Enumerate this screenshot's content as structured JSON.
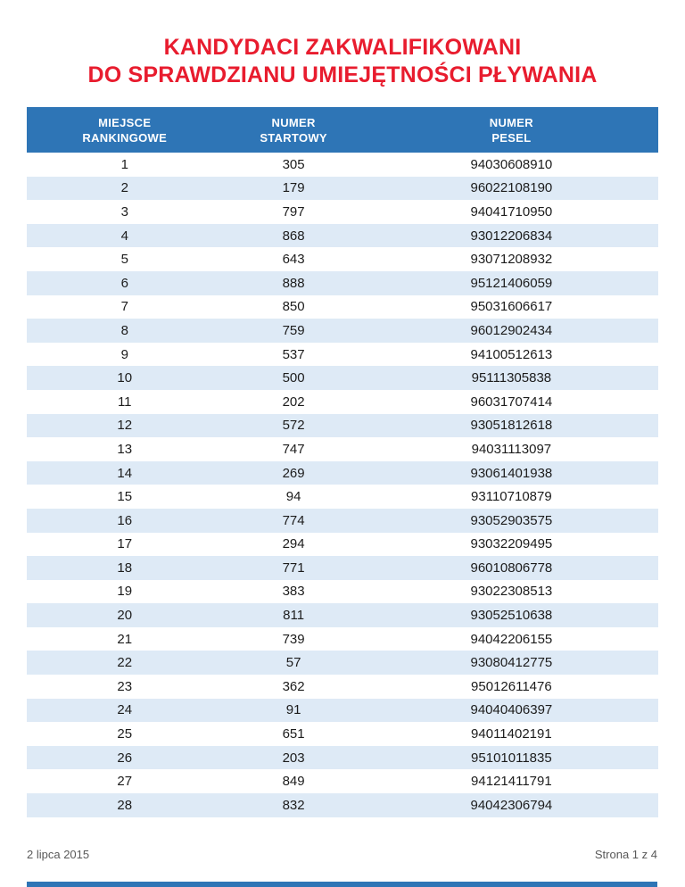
{
  "title": {
    "line1": "KANDYDACI ZAKWALIFIKOWANI",
    "line2": "DO SPRAWDZIANU UMIEJĘTNOŚCI PŁYWANIA"
  },
  "table": {
    "columns": [
      {
        "line1": "MIEJSCE",
        "line2": "RANKINGOWE"
      },
      {
        "line1": "NUMER",
        "line2": "STARTOWY"
      },
      {
        "line1": "NUMER",
        "line2": "PESEL"
      }
    ],
    "rows": [
      [
        "1",
        "305",
        "94030608910"
      ],
      [
        "2",
        "179",
        "96022108190"
      ],
      [
        "3",
        "797",
        "94041710950"
      ],
      [
        "4",
        "868",
        "93012206834"
      ],
      [
        "5",
        "643",
        "93071208932"
      ],
      [
        "6",
        "888",
        "95121406059"
      ],
      [
        "7",
        "850",
        "95031606617"
      ],
      [
        "8",
        "759",
        "96012902434"
      ],
      [
        "9",
        "537",
        "94100512613"
      ],
      [
        "10",
        "500",
        "95111305838"
      ],
      [
        "11",
        "202",
        "96031707414"
      ],
      [
        "12",
        "572",
        "93051812618"
      ],
      [
        "13",
        "747",
        "94031113097"
      ],
      [
        "14",
        "269",
        "93061401938"
      ],
      [
        "15",
        "94",
        "93110710879"
      ],
      [
        "16",
        "774",
        "93052903575"
      ],
      [
        "17",
        "294",
        "93032209495"
      ],
      [
        "18",
        "771",
        "96010806778"
      ],
      [
        "19",
        "383",
        "93022308513"
      ],
      [
        "20",
        "811",
        "93052510638"
      ],
      [
        "21",
        "739",
        "94042206155"
      ],
      [
        "22",
        "57",
        "93080412775"
      ],
      [
        "23",
        "362",
        "95012611476"
      ],
      [
        "24",
        "91",
        "94040406397"
      ],
      [
        "25",
        "651",
        "94011402191"
      ],
      [
        "26",
        "203",
        "95101011835"
      ],
      [
        "27",
        "849",
        "94121411791"
      ],
      [
        "28",
        "832",
        "94042306794"
      ]
    ]
  },
  "footer": {
    "date": "2 lipca 2015",
    "page": "Strona 1 z 4"
  },
  "colors": {
    "header_blue": "#2E75B6",
    "band_blue": "#DEEAF6",
    "title_red": "#E81C2E",
    "cell_text": "#1c1c1c",
    "footer_gray": "#595959"
  }
}
